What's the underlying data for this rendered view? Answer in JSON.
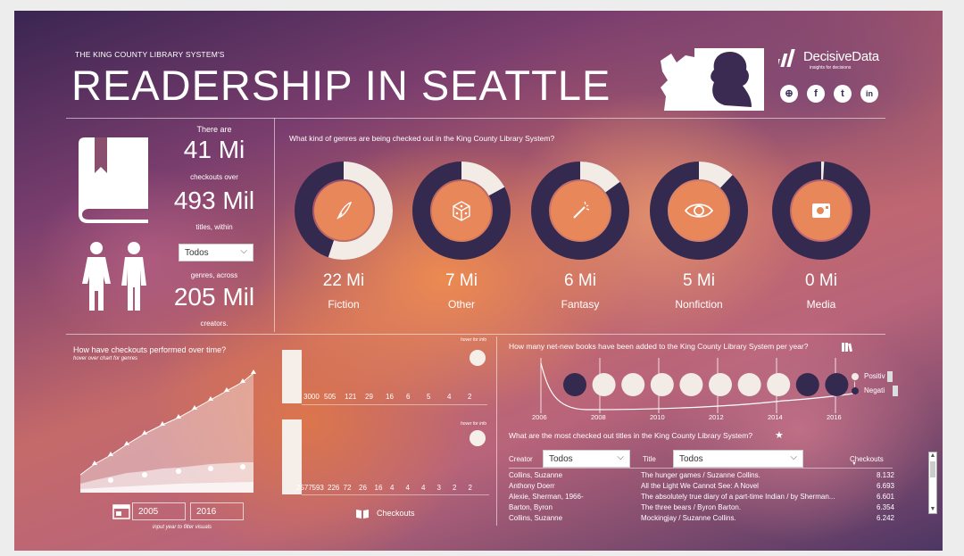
{
  "header": {
    "subtitle": "THE KING COUNTY LIBRARY SYSTEM'S",
    "title": "READERSHIP IN SEATTLE",
    "brand_name": "DecisiveData",
    "brand_tagline": "insights for decisions",
    "social": [
      "globe-icon",
      "facebook-icon",
      "twitter-icon",
      "linkedin-icon"
    ],
    "social_glyphs": [
      "⊕",
      "f",
      "t",
      "in"
    ]
  },
  "summary": {
    "line1": "There are",
    "checkouts": "41 Mi",
    "line2": "checkouts over",
    "titles": "493 Mil",
    "line3": "titles, within",
    "genre_filter": "Todos",
    "line4": "genres, across",
    "creators": "205 Mil",
    "line5": "creators."
  },
  "genres": {
    "question": "What kind of genres are being checked out in the King County Library System?",
    "items": [
      {
        "value": "22 Mi",
        "name": "Fiction",
        "share": 0.55,
        "icon": "feather-icon"
      },
      {
        "value": "7 Mi",
        "name": "Other",
        "share": 0.17,
        "icon": "dice-icon"
      },
      {
        "value": "6 Mi",
        "name": "Fantasy",
        "share": 0.15,
        "icon": "magic-wand-icon"
      },
      {
        "value": "5 Mi",
        "name": "Nonfiction",
        "share": 0.12,
        "icon": "eye-icon"
      },
      {
        "value": "0 Mi",
        "name": "Media",
        "share": 0.01,
        "icon": "media-icon"
      }
    ]
  },
  "performance": {
    "title": "How have checkouts performed over time?",
    "hint": "hover over chart for genres",
    "year_from": "2005",
    "year_to": "2016",
    "year_hint": "input year to filter visuals"
  },
  "bars": {
    "hover1": "hover for info",
    "hover2": "hover for info",
    "top_values": [
      "3000",
      "505",
      "121",
      "29",
      "16",
      "6",
      "5",
      "4",
      "2"
    ],
    "bottom_values": [
      "2577",
      "593",
      "226",
      "72",
      "26",
      "16",
      "4",
      "4",
      "4",
      "3",
      "2",
      "2"
    ],
    "label": "Checkouts"
  },
  "netnew": {
    "title": "How many net-new books have been added to the King County Library System per year?",
    "years": [
      "2006",
      "2008",
      "2010",
      "2012",
      "2014",
      "2016"
    ],
    "legend_pos": "Positiv",
    "legend_neg": "Negati"
  },
  "most_checked": {
    "title": "What are the most checked out titles in the King County Library System?",
    "creator_label": "Creator",
    "creator_filter": "Todos",
    "title_label": "Title",
    "title_filter": "Todos",
    "checkouts_label": "Checkouts",
    "rows": [
      {
        "creator": "Collins, Suzanne",
        "title": "The hunger games / Suzanne Collins.",
        "checkouts": "8.132"
      },
      {
        "creator": "Anthony Doerr",
        "title": "All the Light We Cannot See: A Novel",
        "checkouts": "6.693"
      },
      {
        "creator": "Alexie, Sherman, 1966-",
        "title": "The absolutely true diary of a part-time Indian / by Sherman...",
        "checkouts": "6.601"
      },
      {
        "creator": "Barton, Byron",
        "title": "The three bears / Byron Barton.",
        "checkouts": "6.354"
      },
      {
        "creator": "Collins, Suzanne",
        "title": "Mockingjay / Suzanne Collins.",
        "checkouts": "6.242"
      }
    ]
  },
  "colors": {
    "dark": "#34294f",
    "light": "#f3ebe6",
    "accent": "#e8885a"
  }
}
